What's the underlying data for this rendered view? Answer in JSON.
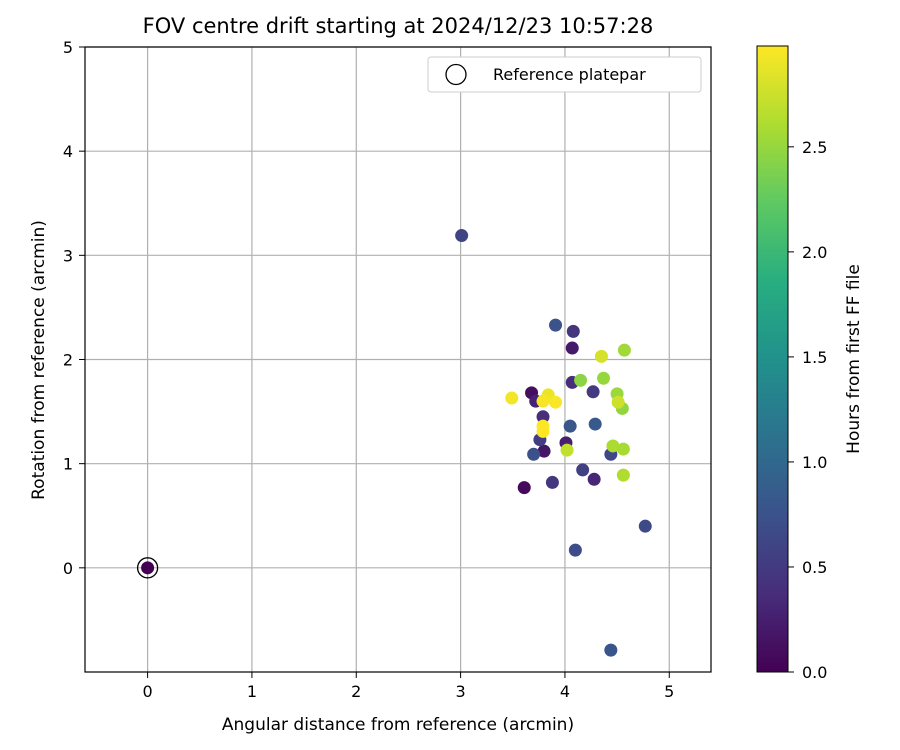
{
  "chart_data": {
    "type": "scatter",
    "title": "FOV centre drift starting at 2024/12/23 10:57:28",
    "xlabel": "Angular distance from reference (arcmin)",
    "ylabel": "Rotation from reference (arcmin)",
    "xlim": [
      -0.6,
      5.4
    ],
    "ylim": [
      -1.0,
      5.0
    ],
    "xticks": [
      0,
      1,
      2,
      3,
      4,
      5
    ],
    "yticks": [
      0,
      1,
      2,
      3,
      4,
      5
    ],
    "grid": true,
    "legend": {
      "placement": "top-right",
      "label": "Reference platepar"
    },
    "reference_point": {
      "x": 0,
      "y": 0
    },
    "colorbar": {
      "label": "Hours from first FF file",
      "colormap": "viridis",
      "range": [
        0.0,
        2.98
      ],
      "ticks": [
        0.0,
        0.5,
        1.0,
        1.5,
        2.0,
        2.5
      ]
    },
    "points": [
      {
        "x": 0.0,
        "y": 0.0,
        "c": 0.0
      },
      {
        "x": 3.61,
        "y": 0.77,
        "c": 0.08
      },
      {
        "x": 3.68,
        "y": 1.68,
        "c": 0.12
      },
      {
        "x": 3.8,
        "y": 1.12,
        "c": 0.17
      },
      {
        "x": 4.07,
        "y": 2.11,
        "c": 0.21
      },
      {
        "x": 4.01,
        "y": 1.2,
        "c": 0.25
      },
      {
        "x": 3.72,
        "y": 1.6,
        "c": 0.29
      },
      {
        "x": 4.28,
        "y": 0.85,
        "c": 0.33
      },
      {
        "x": 4.07,
        "y": 1.78,
        "c": 0.37
      },
      {
        "x": 3.79,
        "y": 1.45,
        "c": 0.4
      },
      {
        "x": 4.08,
        "y": 2.27,
        "c": 0.44
      },
      {
        "x": 3.88,
        "y": 0.82,
        "c": 0.47
      },
      {
        "x": 4.27,
        "y": 1.69,
        "c": 0.5
      },
      {
        "x": 3.76,
        "y": 1.23,
        "c": 0.53
      },
      {
        "x": 4.17,
        "y": 0.94,
        "c": 0.56
      },
      {
        "x": 3.01,
        "y": 3.19,
        "c": 0.6
      },
      {
        "x": 4.44,
        "y": 1.09,
        "c": 0.63
      },
      {
        "x": 4.77,
        "y": 0.4,
        "c": 0.66
      },
      {
        "x": 4.1,
        "y": 0.17,
        "c": 0.69
      },
      {
        "x": 3.7,
        "y": 1.09,
        "c": 0.72
      },
      {
        "x": 3.91,
        "y": 2.33,
        "c": 0.75
      },
      {
        "x": 4.44,
        "y": -0.79,
        "c": 0.78
      },
      {
        "x": 4.05,
        "y": 1.36,
        "c": 0.8
      },
      {
        "x": 4.29,
        "y": 1.38,
        "c": 0.83
      },
      {
        "x": 4.15,
        "y": 1.8,
        "c": 2.45
      },
      {
        "x": 4.37,
        "y": 1.82,
        "c": 2.5
      },
      {
        "x": 4.57,
        "y": 2.09,
        "c": 2.55
      },
      {
        "x": 4.55,
        "y": 1.53,
        "c": 2.48
      },
      {
        "x": 4.5,
        "y": 1.67,
        "c": 2.52
      },
      {
        "x": 4.46,
        "y": 1.17,
        "c": 2.6
      },
      {
        "x": 4.56,
        "y": 1.14,
        "c": 2.58
      },
      {
        "x": 4.56,
        "y": 0.89,
        "c": 2.62
      },
      {
        "x": 4.02,
        "y": 1.13,
        "c": 2.7
      },
      {
        "x": 4.51,
        "y": 1.59,
        "c": 2.75
      },
      {
        "x": 4.35,
        "y": 2.03,
        "c": 2.8
      },
      {
        "x": 3.84,
        "y": 1.66,
        "c": 2.9
      },
      {
        "x": 3.49,
        "y": 1.63,
        "c": 2.93
      },
      {
        "x": 3.79,
        "y": 1.6,
        "c": 2.95
      },
      {
        "x": 3.91,
        "y": 1.59,
        "c": 2.96
      },
      {
        "x": 3.79,
        "y": 1.36,
        "c": 2.97
      },
      {
        "x": 3.79,
        "y": 1.31,
        "c": 2.98
      }
    ]
  }
}
